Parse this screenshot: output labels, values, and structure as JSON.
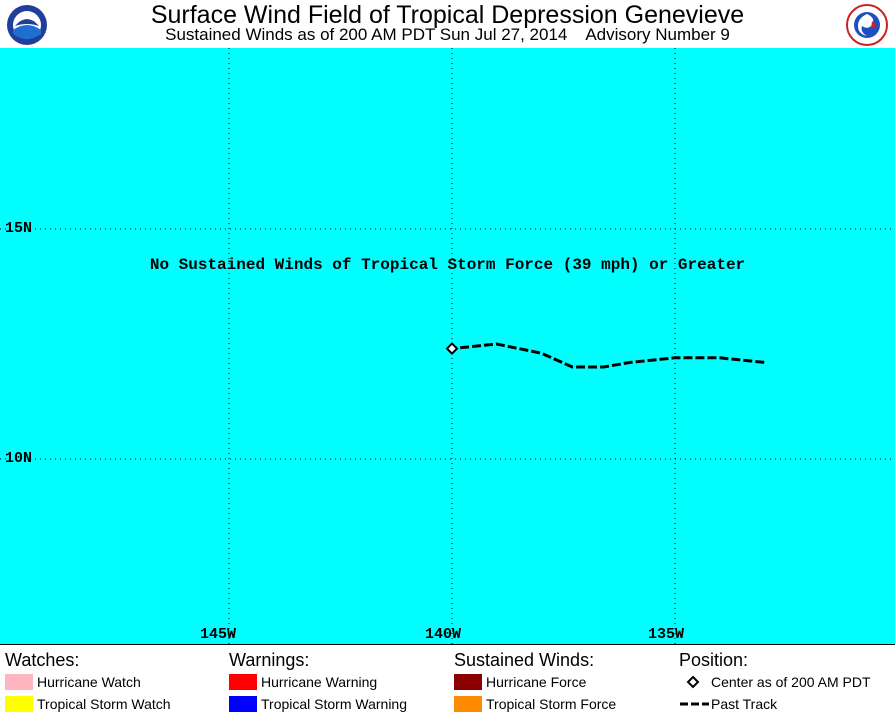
{
  "header": {
    "title": "Surface Wind Field of Tropical Depression Genevieve",
    "subtitle": "Sustained Winds as of 200 AM PDT Sun Jul 27, 2014    Advisory Number 9",
    "logo_left": "NOAA",
    "logo_right": "NATIONAL WEATHER SERVICE"
  },
  "map": {
    "background_color": "#00ffff",
    "lat_labels": [
      "15N",
      "10N"
    ],
    "lon_labels": [
      "145W",
      "140W",
      "135W"
    ],
    "notice": "No Sustained Winds of Tropical Storm Force (39 mph) or Greater",
    "storm_center": {
      "lat": 12.4,
      "lon": 140.0
    },
    "past_track": [
      {
        "lat": 12.1,
        "lon": 133.0
      },
      {
        "lat": 12.2,
        "lon": 134.0
      },
      {
        "lat": 12.2,
        "lon": 135.0
      },
      {
        "lat": 12.1,
        "lon": 136.0
      },
      {
        "lat": 12.0,
        "lon": 136.6
      },
      {
        "lat": 12.0,
        "lon": 137.3
      },
      {
        "lat": 12.3,
        "lon": 138.0
      },
      {
        "lat": 12.5,
        "lon": 139.0
      },
      {
        "lat": 12.4,
        "lon": 140.0
      }
    ]
  },
  "legend": {
    "watches": {
      "heading": "Watches:",
      "items": [
        {
          "label": "Hurricane Watch",
          "color": "#ffb6c1"
        },
        {
          "label": "Tropical Storm Watch",
          "color": "#ffff00"
        }
      ]
    },
    "warnings": {
      "heading": "Warnings:",
      "items": [
        {
          "label": "Hurricane Warning",
          "color": "#ff0000"
        },
        {
          "label": "Tropical Storm Warning",
          "color": "#0000ff"
        }
      ]
    },
    "winds": {
      "heading": "Sustained Winds:",
      "items": [
        {
          "label": "Hurricane Force",
          "color": "#8b0000"
        },
        {
          "label": "Tropical Storm Force",
          "color": "#ff8c00"
        }
      ]
    },
    "position": {
      "heading": "Position:",
      "center_label": "Center as of 200 AM PDT",
      "track_label": "Past Track"
    }
  }
}
